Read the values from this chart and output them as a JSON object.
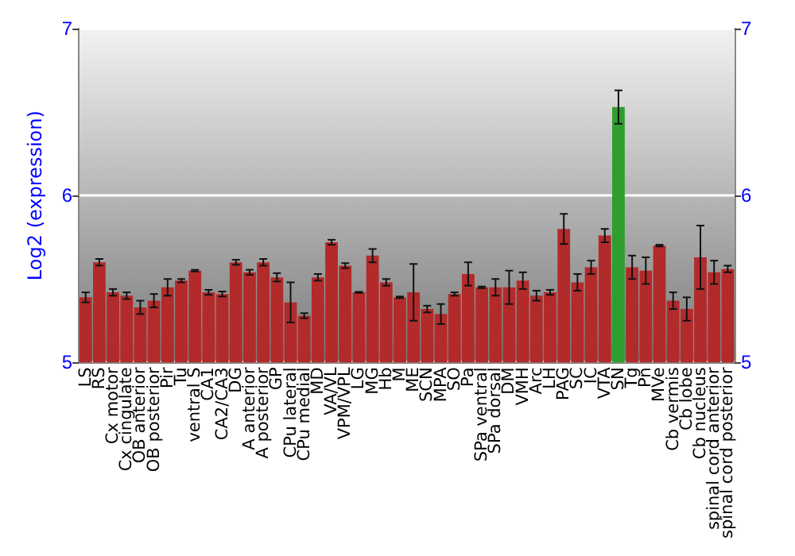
{
  "chart_data": {
    "type": "bar",
    "ylabel": "Log2 (expression)",
    "categories": [
      "LS",
      "RS",
      "Cx motor",
      "Cx cingulate",
      "OB anterior",
      "OB posterior",
      "Pir",
      "Tu",
      "ventral S",
      "CA1",
      "CA2/CA3",
      "DG",
      "A anterior",
      "A posterior",
      "GP",
      "CPu lateral",
      "CPu medial",
      "MD",
      "VA/VL",
      "VPM/VPL",
      "LG",
      "MG",
      "Hb",
      "M",
      "ME",
      "SCN",
      "MPA",
      "SO",
      "Pa",
      "SPa ventral",
      "SPa dorsal",
      "DM",
      "VMH",
      "Arc",
      "LH",
      "PAG",
      "SC",
      "IC",
      "VTA",
      "SN",
      "Tg",
      "Pn",
      "MVe",
      "Cb vermis",
      "Cb lobe",
      "Cb nucleus",
      "spinal cord anterior",
      "spinal cord posterior"
    ],
    "values": [
      5.39,
      5.6,
      5.42,
      5.4,
      5.33,
      5.37,
      5.45,
      5.49,
      5.55,
      5.42,
      5.41,
      5.6,
      5.54,
      5.6,
      5.51,
      5.36,
      5.28,
      5.51,
      5.72,
      5.58,
      5.42,
      5.64,
      5.48,
      5.39,
      5.42,
      5.32,
      5.29,
      5.41,
      5.53,
      5.45,
      5.45,
      5.45,
      5.49,
      5.4,
      5.42,
      5.8,
      5.48,
      5.57,
      5.76,
      6.53,
      5.57,
      5.55,
      5.7,
      5.37,
      5.32,
      5.63,
      5.54,
      5.56
    ],
    "errors": [
      0.03,
      0.02,
      0.02,
      0.02,
      0.04,
      0.04,
      0.05,
      0.01,
      0.005,
      0.015,
      0.015,
      0.015,
      0.015,
      0.02,
      0.025,
      0.12,
      0.015,
      0.02,
      0.015,
      0.015,
      0.003,
      0.04,
      0.02,
      0.005,
      0.17,
      0.02,
      0.06,
      0.01,
      0.07,
      0.005,
      0.05,
      0.1,
      0.05,
      0.03,
      0.015,
      0.09,
      0.05,
      0.04,
      0.04,
      0.1,
      0.07,
      0.08,
      0.005,
      0.05,
      0.07,
      0.19,
      0.07,
      0.02
    ],
    "colors": [
      "#b32a2a",
      "#b32a2a",
      "#b32a2a",
      "#b32a2a",
      "#b32a2a",
      "#b32a2a",
      "#b32a2a",
      "#b32a2a",
      "#b32a2a",
      "#b32a2a",
      "#b32a2a",
      "#b32a2a",
      "#b32a2a",
      "#b32a2a",
      "#b32a2a",
      "#b32a2a",
      "#b32a2a",
      "#b32a2a",
      "#b32a2a",
      "#b32a2a",
      "#b32a2a",
      "#b32a2a",
      "#b32a2a",
      "#b32a2a",
      "#b32a2a",
      "#b32a2a",
      "#b32a2a",
      "#b32a2a",
      "#b32a2a",
      "#b32a2a",
      "#b32a2a",
      "#b32a2a",
      "#b32a2a",
      "#b32a2a",
      "#b32a2a",
      "#b32a2a",
      "#b32a2a",
      "#b32a2a",
      "#b32a2a",
      "#2e9e2e",
      "#b32a2a",
      "#b32a2a",
      "#b32a2a",
      "#b32a2a",
      "#b32a2a",
      "#b32a2a",
      "#b32a2a",
      "#b32a2a"
    ],
    "ylim": [
      5,
      7
    ],
    "yticks": [
      5,
      6,
      7
    ],
    "y2lim": [
      5,
      7
    ],
    "y2ticks": [
      5,
      6,
      7
    ],
    "grid": "y"
  }
}
